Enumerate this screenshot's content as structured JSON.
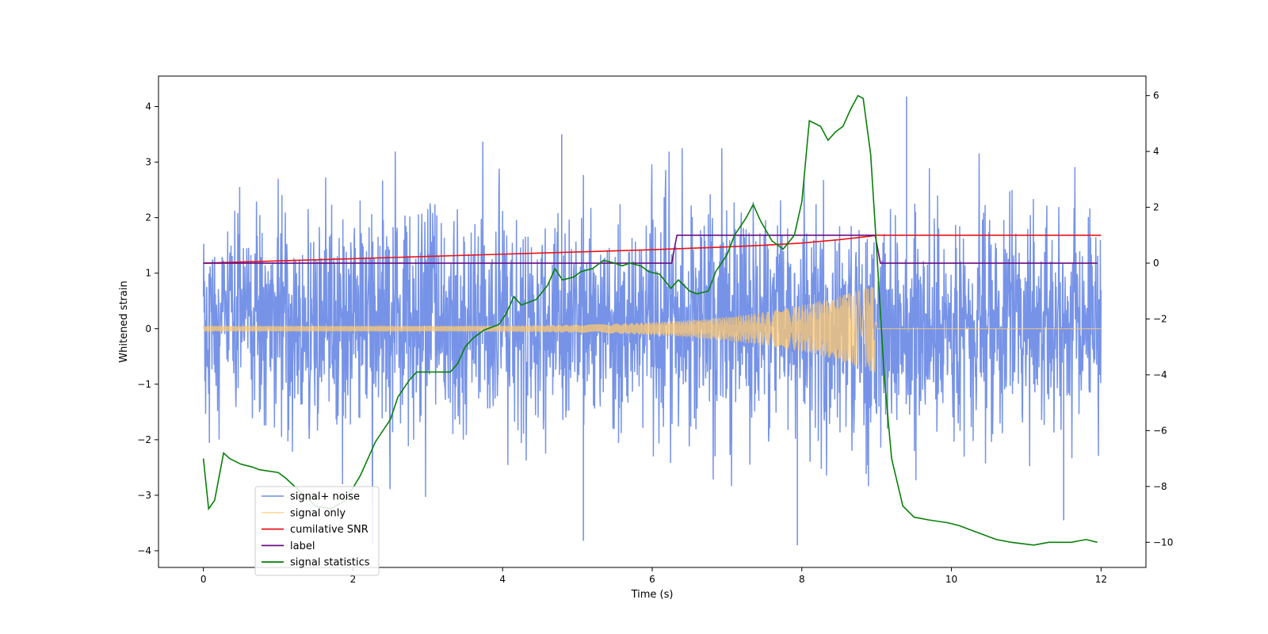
{
  "chart_data": {
    "type": "line",
    "xlabel": "Time (s)",
    "ylabel": "Whitened strain",
    "xlim": [
      -0.6,
      12.6
    ],
    "ylim_left": [
      -4.3,
      4.55
    ],
    "ylim_right": [
      -10.9,
      6.7
    ],
    "xticks": [
      0,
      2,
      4,
      6,
      8,
      10,
      12
    ],
    "yticks_left": [
      -4,
      -3,
      -2,
      -1,
      0,
      1,
      2,
      3,
      4
    ],
    "yticks_right": [
      -10,
      -8,
      -6,
      -4,
      -2,
      0,
      2,
      4,
      6
    ],
    "legend_position": "lower-left",
    "series": [
      {
        "name": "signal+ noise",
        "axis": "left",
        "color": "#6f8de6",
        "kind": "noise",
        "x_range": [
          0,
          12
        ],
        "typical_envelope": [
          -1.7,
          1.9
        ],
        "extremes": [
          -3.9,
          4.2
        ],
        "notable_peaks": [
          [
            4.79,
            3.5
          ],
          [
            5.08,
            -3.82
          ],
          [
            7.94,
            -3.9
          ],
          [
            9.4,
            4.18
          ],
          [
            11.5,
            -3.45
          ]
        ]
      },
      {
        "name": "signal only",
        "axis": "left",
        "color": "#ffc971",
        "kind": "chirp",
        "start_amplitude": 0.05,
        "peak_time": 9.0,
        "peak_amplitude": 0.8,
        "post_merger_value": 0.0,
        "x_range": [
          0,
          12
        ]
      },
      {
        "name": "cumilative SNR",
        "axis": "right",
        "color": "#e8141a",
        "x": [
          0,
          1,
          2,
          3,
          4,
          5,
          6,
          7,
          7.5,
          8,
          8.5,
          8.9,
          9.0,
          9.05,
          10,
          11,
          12
        ],
        "y": [
          0,
          0.08,
          0.16,
          0.24,
          0.32,
          0.4,
          0.48,
          0.58,
          0.64,
          0.72,
          0.84,
          0.96,
          1.0,
          1.0,
          1.0,
          1.0,
          1.0
        ]
      },
      {
        "name": "label",
        "axis": "right",
        "color": "#6a0d83",
        "x": [
          0,
          6.26,
          6.33,
          8.98,
          9.05,
          11.95
        ],
        "y": [
          0,
          0,
          1,
          1,
          0,
          0
        ]
      },
      {
        "name": "signal statistics",
        "axis": "right",
        "color": "#098009",
        "x": [
          0,
          0.07,
          0.15,
          0.27,
          0.35,
          0.5,
          0.65,
          0.75,
          1.0,
          1.1,
          1.3,
          1.5,
          1.7,
          1.9,
          2.1,
          2.3,
          2.5,
          2.6,
          2.75,
          2.85,
          3.0,
          3.15,
          3.3,
          3.4,
          3.5,
          3.6,
          3.7,
          3.75,
          3.85,
          3.95,
          4.05,
          4.15,
          4.25,
          4.35,
          4.45,
          4.6,
          4.7,
          4.8,
          4.95,
          5.05,
          5.2,
          5.35,
          5.5,
          5.6,
          5.7,
          5.85,
          5.95,
          6.1,
          6.25,
          6.35,
          6.5,
          6.6,
          6.75,
          6.85,
          7.0,
          7.1,
          7.25,
          7.35,
          7.45,
          7.6,
          7.75,
          7.9,
          8.0,
          8.1,
          8.25,
          8.35,
          8.45,
          8.55,
          8.65,
          8.75,
          8.82,
          8.92,
          9.0,
          9.1,
          9.2,
          9.35,
          9.5,
          9.7,
          9.95,
          10.1,
          10.3,
          10.6,
          10.8,
          11.1,
          11.3,
          11.6,
          11.8,
          11.95
        ],
        "y": [
          -7.0,
          -8.8,
          -8.5,
          -6.8,
          -7.0,
          -7.2,
          -7.3,
          -7.4,
          -7.5,
          -7.7,
          -8.2,
          -8.7,
          -8.8,
          -8.5,
          -7.6,
          -6.4,
          -5.6,
          -4.8,
          -4.2,
          -3.9,
          -3.9,
          -3.9,
          -3.9,
          -3.6,
          -3.0,
          -2.7,
          -2.5,
          -2.4,
          -2.3,
          -2.2,
          -1.8,
          -1.2,
          -1.5,
          -1.4,
          -1.3,
          -0.8,
          -0.2,
          -0.6,
          -0.5,
          -0.3,
          -0.2,
          0.1,
          0.0,
          -0.1,
          0.0,
          -0.1,
          -0.3,
          -0.4,
          -0.9,
          -0.6,
          -1.0,
          -1.1,
          -1.0,
          -0.3,
          0.3,
          1.0,
          1.6,
          2.1,
          1.5,
          0.8,
          0.5,
          1.0,
          2.2,
          5.1,
          4.9,
          4.4,
          4.7,
          4.9,
          5.5,
          6.0,
          5.9,
          3.9,
          0.5,
          -4.0,
          -7.0,
          -8.7,
          -9.1,
          -9.2,
          -9.3,
          -9.4,
          -9.6,
          -9.9,
          -10.0,
          -10.1,
          -10.0,
          -10.0,
          -9.9,
          -10.0
        ]
      }
    ]
  }
}
